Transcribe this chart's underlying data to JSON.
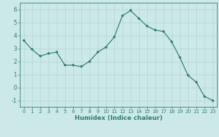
{
  "x": [
    0,
    1,
    2,
    3,
    4,
    5,
    6,
    7,
    8,
    9,
    10,
    11,
    12,
    13,
    14,
    15,
    16,
    17,
    18,
    19,
    20,
    21,
    22,
    23
  ],
  "y": [
    3.6,
    2.9,
    2.4,
    2.6,
    2.7,
    1.7,
    1.7,
    1.6,
    2.0,
    2.7,
    3.1,
    3.85,
    5.5,
    5.9,
    5.3,
    4.7,
    4.4,
    4.3,
    3.5,
    2.3,
    0.9,
    0.4,
    -0.7,
    -1.0
  ],
  "xlabel": "Humidex (Indice chaleur)",
  "line_color": "#2e7d6e",
  "bg_color": "#cce9e7",
  "grid_color": "#b0d4d0",
  "axis_color": "#2e7d6e",
  "marker": "+",
  "ylim": [
    -1.5,
    6.5
  ],
  "xlim": [
    -0.5,
    23.5
  ],
  "yticks": [
    -1,
    0,
    1,
    2,
    3,
    4,
    5,
    6
  ],
  "xticks": [
    0,
    1,
    2,
    3,
    4,
    5,
    6,
    7,
    8,
    9,
    10,
    11,
    12,
    13,
    14,
    15,
    16,
    17,
    18,
    19,
    20,
    21,
    22,
    23
  ],
  "xlabel_fontsize": 6.5,
  "xlabel_fontweight": "bold",
  "xtick_fontsize": 5.2,
  "ytick_fontsize": 6.0
}
